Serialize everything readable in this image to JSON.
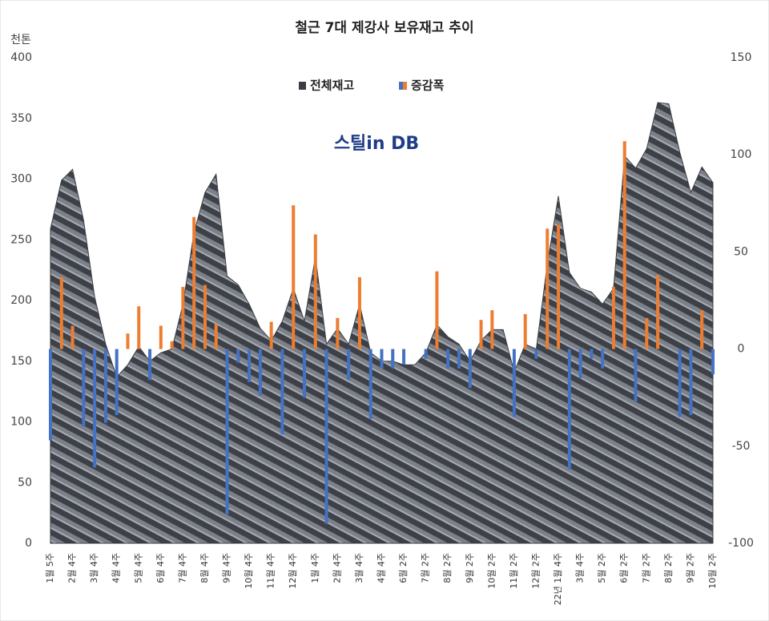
{
  "chart_data": {
    "type": "area_bar",
    "title": "철근 7대 제강사 보유재고 추이",
    "y_unit": "천톤",
    "watermark": "스틸in DB",
    "categories": [
      "1월 5주",
      null,
      "2월 4주",
      null,
      "3월 4주",
      null,
      "4월 4주",
      null,
      "5월 4주",
      null,
      "6월 4주",
      null,
      "7월 4주",
      null,
      "8월 4주",
      null,
      "9월 4주",
      null,
      "10월 4주",
      null,
      "11월 4주",
      null,
      "12월 4주",
      null,
      "1월 4주",
      null,
      "2월 4주",
      null,
      "3월 4주",
      null,
      "4월 4주",
      null,
      "6월 2주",
      null,
      "7월 2주",
      null,
      "8월 2주",
      null,
      "9월 2주",
      null,
      "10월 2주",
      null,
      "11월 2주",
      null,
      "12월 2주",
      null,
      "22년 1월 4주",
      null,
      "3월 4주",
      null,
      "5월 2주",
      null,
      "6월 2주",
      null,
      "7월 2주",
      null,
      "8월 2주",
      null,
      "9월 2주",
      null,
      "10월 2주"
    ],
    "series": [
      {
        "name": "전체재고",
        "kind": "area",
        "color": "#3a3d42",
        "values": [
          259,
          299,
          308,
          266,
          203,
          164,
          137,
          147,
          162,
          150,
          157,
          160,
          197,
          256,
          289,
          304,
          220,
          213,
          197,
          177,
          167,
          183,
          210,
          183,
          236,
          164,
          177,
          164,
          197,
          157,
          150,
          150,
          147,
          147,
          157,
          180,
          170,
          164,
          150,
          167,
          176,
          176,
          141,
          164,
          160,
          230,
          286,
          223,
          210,
          207,
          197,
          210,
          319,
          309,
          325,
          363,
          362,
          322,
          289,
          310,
          297
        ]
      },
      {
        "name": "증감폭",
        "kind": "bar",
        "axis": "y2",
        "color": "#ed7d31",
        "negative_color": "#4472c4",
        "values": [
          -47,
          37,
          12,
          -40,
          -61,
          -38,
          -34,
          8,
          22,
          -16,
          12,
          4,
          32,
          68,
          33,
          13,
          -85,
          -7,
          -17,
          -24,
          14,
          -44,
          74,
          -25,
          59,
          -90,
          16,
          -16,
          37,
          -36,
          -10,
          -10,
          -8,
          0,
          -5,
          40,
          -10,
          -10,
          -20,
          15,
          20,
          0,
          -35,
          18,
          -5,
          62,
          64,
          -62,
          -15,
          -5,
          -10,
          32,
          107,
          -27,
          16,
          38,
          0,
          -35,
          -34,
          20,
          -13
        ]
      }
    ],
    "ylim": [
      0,
      400
    ],
    "yticks": [
      0,
      50,
      100,
      150,
      200,
      250,
      300,
      350,
      400
    ],
    "y2lim": [
      -100,
      150
    ],
    "y2ticks": [
      -100,
      -50,
      0,
      50,
      100,
      150
    ],
    "legend": "top"
  }
}
